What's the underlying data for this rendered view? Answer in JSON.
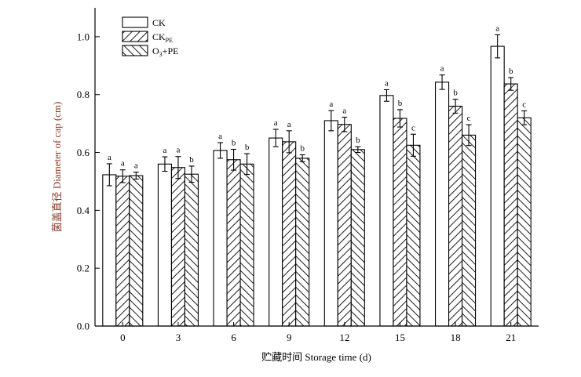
{
  "chart_data": {
    "type": "bar",
    "xlabel": "贮藏时间 Storage time (d)",
    "ylabel": "菌盖直径 Diameter of cap (cm)",
    "ylim": [
      0,
      1.1
    ],
    "yticks": [
      "0.0",
      "0.2",
      "0.4",
      "0.6",
      "0.8",
      "1.0"
    ],
    "categories": [
      "0",
      "3",
      "6",
      "9",
      "12",
      "15",
      "18",
      "21"
    ],
    "legend_position": "top-left",
    "series": [
      {
        "name": "CK",
        "legend_main": "CK",
        "legend_sub": "",
        "legend_tail": "",
        "pattern": "none",
        "values": [
          0.523,
          0.56,
          0.607,
          0.65,
          0.71,
          0.797,
          0.843,
          0.967
        ],
        "errors": [
          0.038,
          0.025,
          0.027,
          0.03,
          0.035,
          0.02,
          0.025,
          0.04
        ],
        "letters": [
          "a",
          "a",
          "a",
          "a",
          "a",
          "a",
          "a",
          "a"
        ]
      },
      {
        "name": "CKPE",
        "legend_main": "CK",
        "legend_sub": "PE",
        "legend_tail": "",
        "pattern": "forward-diagonal",
        "values": [
          0.518,
          0.548,
          0.575,
          0.637,
          0.697,
          0.718,
          0.76,
          0.837
        ],
        "errors": [
          0.022,
          0.038,
          0.036,
          0.038,
          0.025,
          0.03,
          0.024,
          0.022
        ],
        "letters": [
          "a",
          "a",
          "b",
          "a",
          "a",
          "b",
          "b",
          "b"
        ]
      },
      {
        "name": "O3+PE",
        "legend_main": "O",
        "legend_sub": "3",
        "legend_tail": "+PE",
        "pattern": "backward-diagonal",
        "values": [
          0.52,
          0.525,
          0.56,
          0.58,
          0.61,
          0.625,
          0.66,
          0.72
        ],
        "errors": [
          0.012,
          0.028,
          0.036,
          0.012,
          0.01,
          0.038,
          0.036,
          0.024
        ],
        "letters": [
          "a",
          "b",
          "b",
          "b",
          "b",
          "c",
          "c",
          "c"
        ]
      }
    ]
  }
}
